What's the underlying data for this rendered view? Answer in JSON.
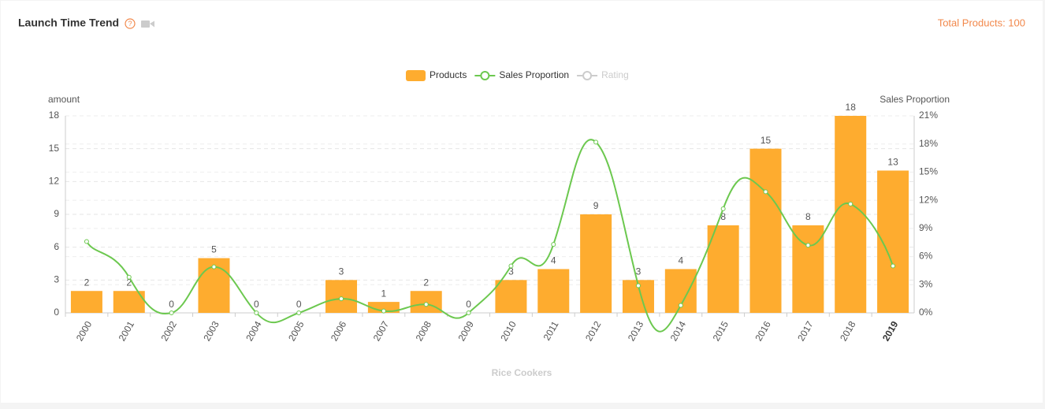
{
  "header": {
    "title": "Launch Time Trend",
    "total": "Total Products: 100"
  },
  "chart_data": {
    "type": "bar",
    "y_label": "amount",
    "y2_label": "Sales Proportion",
    "x_label": "Rice Cookers",
    "categories": [
      "2000",
      "2001",
      "2002",
      "2003",
      "2004",
      "2005",
      "2006",
      "2007",
      "2008",
      "2009",
      "2010",
      "2011",
      "2012",
      "2013",
      "2014",
      "2015",
      "2016",
      "2017",
      "2018",
      "2019"
    ],
    "series": [
      {
        "name": "Products",
        "color": "#feac2f",
        "type": "bar",
        "values": [
          2,
          2,
          0,
          5,
          0,
          0,
          3,
          1,
          2,
          0,
          3,
          4,
          9,
          3,
          4,
          8,
          15,
          8,
          18,
          13
        ]
      },
      {
        "name": "Sales Proportion",
        "color": "#6cc84f",
        "type": "line",
        "axis": "y2",
        "values": [
          7.6,
          3.8,
          0,
          4.9,
          0,
          0,
          1.5,
          0.2,
          0.9,
          0,
          5.0,
          7.3,
          18.2,
          2.9,
          0.8,
          11.1,
          12.9,
          7.2,
          11.6,
          5.0
        ]
      },
      {
        "name": "Rating",
        "color": "#cccccc",
        "type": "line",
        "hidden": true,
        "values": [
          null,
          null,
          null,
          null,
          null,
          null,
          null,
          null,
          null,
          null,
          null,
          null,
          null,
          null,
          null,
          null,
          null,
          null,
          null,
          null
        ]
      }
    ],
    "ylim": [
      0,
      18
    ],
    "yticks": [
      0,
      3,
      6,
      9,
      12,
      15,
      18
    ],
    "y2lim": [
      0,
      21
    ],
    "y2ticks": [
      {
        "value": 0,
        "label": "0%"
      },
      {
        "value": 3,
        "label": "3%"
      },
      {
        "value": 6,
        "label": "6%"
      },
      {
        "value": 9,
        "label": "9%"
      },
      {
        "value": 12,
        "label": "12%"
      },
      {
        "value": 15,
        "label": "15%"
      },
      {
        "value": 18,
        "label": "18%"
      },
      {
        "value": 21,
        "label": "21%"
      }
    ],
    "grid": true,
    "legend": "top"
  }
}
